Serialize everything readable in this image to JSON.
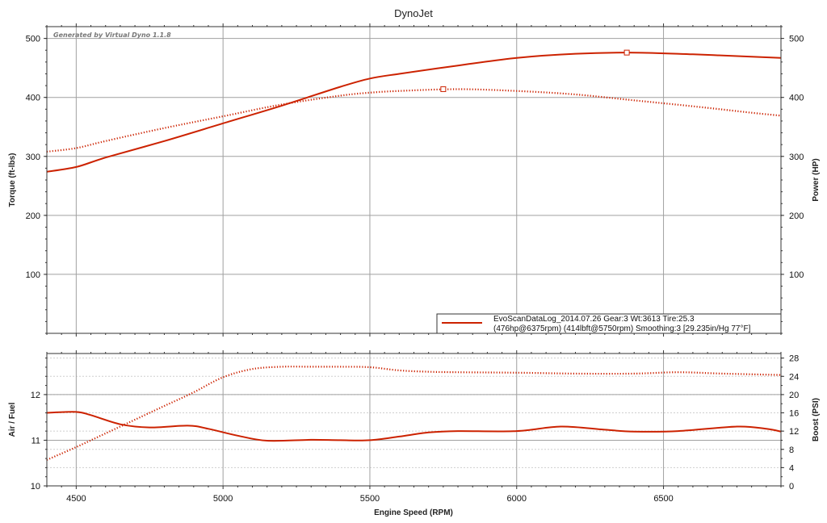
{
  "title": "DynoJet",
  "watermark": "Generated by Virtual Dyno 1.1.8",
  "xlabel": "Engine Speed (RPM)",
  "legend": {
    "line1": "EvoScanDataLog_2014.07.26 Gear:3 Wt:3613 Tire:25.3",
    "line2": "(476hp@6375rpm) (414lbft@5750rpm) Smoothing:3 [29.235in/Hg 77°F]"
  },
  "colors": {
    "series": "#cc2200"
  },
  "chart_data": [
    {
      "type": "line",
      "xlim": [
        4400,
        6900
      ],
      "x_ticks": [
        4500,
        5000,
        5500,
        6000,
        6500
      ],
      "x_tick_labels": [
        "4500",
        "5000",
        "5500",
        "6000",
        "6500"
      ],
      "y_left": {
        "label": "Torque (ft-lbs)",
        "lim": [
          0,
          520
        ],
        "ticks": [
          100,
          200,
          300,
          400,
          500
        ],
        "tick_labels": [
          "100",
          "200",
          "300",
          "400",
          "500"
        ]
      },
      "y_right": {
        "label": "Power (HP)",
        "lim": [
          0,
          520
        ],
        "ticks": [
          100,
          200,
          300,
          400,
          500
        ],
        "tick_labels": [
          "100",
          "200",
          "300",
          "400",
          "500"
        ]
      },
      "grid": true,
      "legend_position": "bottom-right",
      "series": [
        {
          "role": "power",
          "style": "solid",
          "axis": "right",
          "marker": {
            "x": 6375,
            "y": 476
          },
          "x": [
            4400,
            4500,
            4600,
            4800,
            5000,
            5200,
            5400,
            5500,
            5600,
            5800,
            6000,
            6200,
            6400,
            6600,
            6800,
            6900
          ],
          "y": [
            274,
            282,
            298,
            326,
            356,
            386,
            418,
            432,
            440,
            454,
            467,
            474,
            476,
            473,
            469,
            467
          ]
        },
        {
          "role": "torque",
          "style": "dotted",
          "axis": "left",
          "marker": {
            "x": 5750,
            "y": 414
          },
          "x": [
            4400,
            4500,
            4600,
            4800,
            5000,
            5200,
            5400,
            5500,
            5600,
            5800,
            6000,
            6200,
            6400,
            6600,
            6800,
            6900
          ],
          "y": [
            308,
            314,
            326,
            348,
            368,
            388,
            403,
            408,
            411,
            414,
            411,
            405,
            395,
            385,
            374,
            369
          ]
        }
      ]
    },
    {
      "type": "line",
      "xlim": [
        4400,
        6900
      ],
      "x_ticks": [
        4500,
        5000,
        5500,
        6000,
        6500
      ],
      "x_tick_labels": [
        "4500",
        "5000",
        "5500",
        "6000",
        "6500"
      ],
      "y_left": {
        "label": "Air / Fuel",
        "lim": [
          10,
          12.9
        ],
        "ticks": [
          10,
          11,
          12
        ],
        "tick_labels": [
          "10",
          "11",
          "12"
        ]
      },
      "y_right": {
        "label": "Boost (PSI)",
        "lim": [
          0,
          29
        ],
        "ticks": [
          0,
          4,
          8,
          12,
          16,
          20,
          24,
          28
        ],
        "tick_labels": [
          "0",
          "4",
          "8",
          "12",
          "16",
          "20",
          "24",
          "28"
        ]
      },
      "grid": true,
      "series": [
        {
          "role": "air-fuel",
          "style": "solid",
          "axis": "left",
          "x": [
            4400,
            4500,
            4550,
            4650,
            4750,
            4880,
            4950,
            5050,
            5150,
            5300,
            5400,
            5500,
            5600,
            5700,
            5800,
            6000,
            6150,
            6300,
            6400,
            6550,
            6750,
            6850,
            6900
          ],
          "y": [
            11.6,
            11.62,
            11.55,
            11.35,
            11.28,
            11.32,
            11.25,
            11.1,
            10.99,
            11.01,
            11.0,
            11.0,
            11.08,
            11.17,
            11.2,
            11.2,
            11.3,
            11.23,
            11.19,
            11.2,
            11.3,
            11.25,
            11.19
          ]
        },
        {
          "role": "boost",
          "style": "dotted",
          "axis": "right",
          "x": [
            4400,
            4500,
            4600,
            4700,
            4800,
            4900,
            5000,
            5100,
            5200,
            5300,
            5400,
            5500,
            5600,
            5700,
            5800,
            6000,
            6200,
            6400,
            6550,
            6700,
            6900
          ],
          "y": [
            5.7,
            8.5,
            11.5,
            14.5,
            17.5,
            20.5,
            23.8,
            25.6,
            26.1,
            26.1,
            26.1,
            26.0,
            25.3,
            25.0,
            24.9,
            24.8,
            24.6,
            24.6,
            24.9,
            24.6,
            24.3
          ]
        }
      ]
    }
  ]
}
